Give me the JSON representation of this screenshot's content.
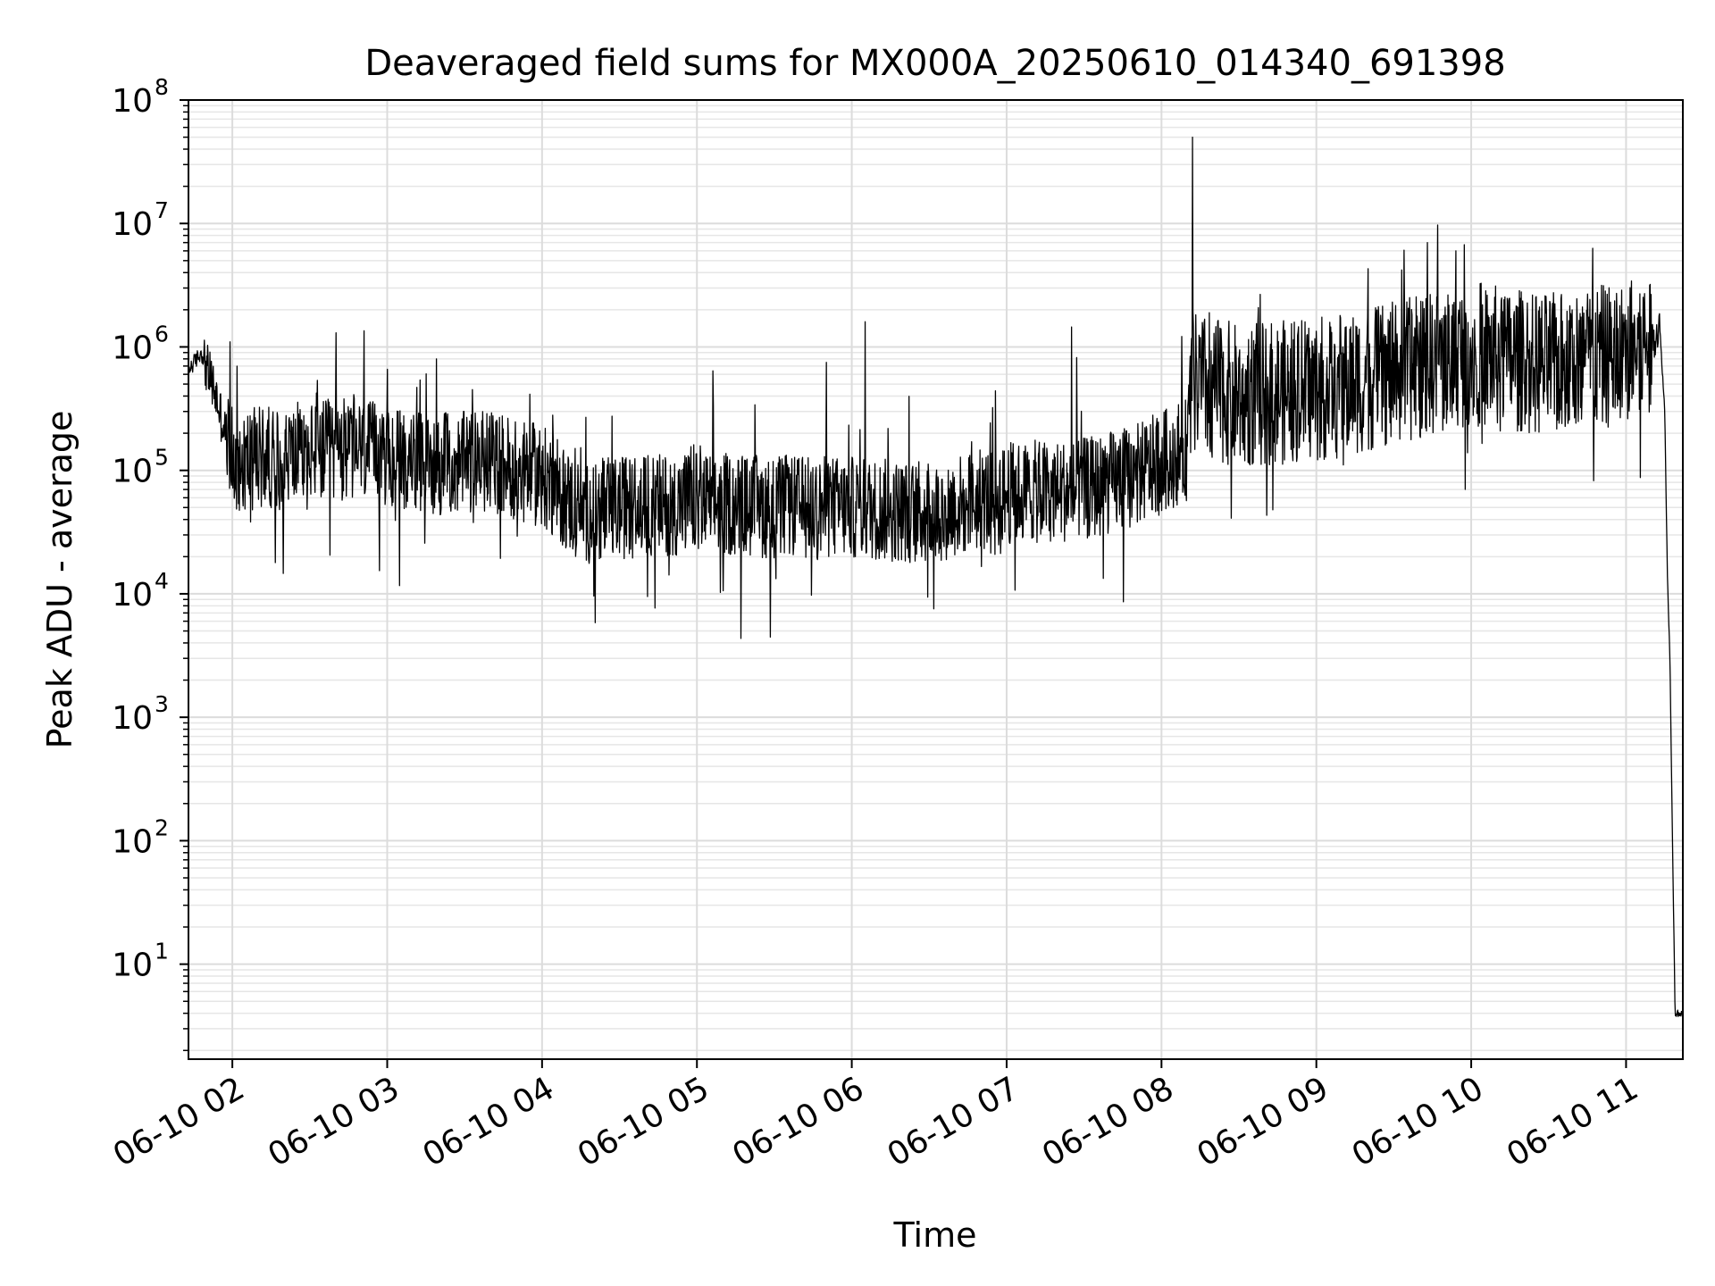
{
  "chart_data": {
    "type": "line",
    "title": "Deaveraged field sums for MX000A_20250610_014340_691398",
    "xlabel": "Time",
    "ylabel": "Peak ADU - average",
    "xlim": [
      "2025-06-10 01:43",
      "2025-06-10 11:22"
    ],
    "ylim": [
      1.7,
      100000000
    ],
    "yscale": "log",
    "grid": true,
    "grid_minor": true,
    "line_color": "#000000",
    "xticks": [
      "06-10 02",
      "06-10 03",
      "06-10 04",
      "06-10 05",
      "06-10 06",
      "06-10 07",
      "06-10 08",
      "06-10 09",
      "06-10 10",
      "06-10 11"
    ],
    "xtick_values": [
      "2025-06-10 02:00",
      "2025-06-10 03:00",
      "2025-06-10 04:00",
      "2025-06-10 05:00",
      "2025-06-10 06:00",
      "2025-06-10 07:00",
      "2025-06-10 08:00",
      "2025-06-10 09:00",
      "2025-06-10 10:00",
      "2025-06-10 11:00"
    ],
    "yticks": [
      10,
      100,
      1000,
      10000,
      100000,
      1000000,
      10000000,
      100000000
    ],
    "ytick_labels": [
      {
        "base": "10",
        "exp": "1"
      },
      {
        "base": "10",
        "exp": "2"
      },
      {
        "base": "10",
        "exp": "3"
      },
      {
        "base": "10",
        "exp": "4"
      },
      {
        "base": "10",
        "exp": "5"
      },
      {
        "base": "10",
        "exp": "6"
      },
      {
        "base": "10",
        "exp": "7"
      },
      {
        "base": "10",
        "exp": "8"
      }
    ],
    "series": [
      {
        "x": [
          "2025-06-10 01:43",
          "2025-06-10 01:48",
          "2025-06-10 01:53",
          "2025-06-10 02:00",
          "2025-06-10 02:15",
          "2025-06-10 02:30",
          "2025-06-10 02:45",
          "2025-06-10 03:00",
          "2025-06-10 03:20",
          "2025-06-10 03:40",
          "2025-06-10 04:00",
          "2025-06-10 04:15",
          "2025-06-10 04:30",
          "2025-06-10 05:00",
          "2025-06-10 05:30",
          "2025-06-10 06:00",
          "2025-06-10 06:30",
          "2025-06-10 07:00",
          "2025-06-10 07:30",
          "2025-06-10 07:50",
          "2025-06-10 08:10",
          "2025-06-10 08:12",
          "2025-06-10 08:30",
          "2025-06-10 09:00",
          "2025-06-10 09:30",
          "2025-06-10 10:00",
          "2025-06-10 10:30",
          "2025-06-10 11:00",
          "2025-06-10 11:10",
          "2025-06-10 11:13",
          "2025-06-10 11:15",
          "2025-06-10 11:16",
          "2025-06-10 11:17",
          "2025-06-10 11:18",
          "2025-06-10 11:19",
          "2025-06-10 11:22"
        ],
        "y": [
          650000,
          900000,
          450000,
          120000,
          130000,
          140000,
          150000,
          130000,
          110000,
          120000,
          90000,
          45000,
          50000,
          55000,
          50000,
          50000,
          45000,
          65000,
          70000,
          90000,
          150000,
          500000,
          400000,
          450000,
          600000,
          900000,
          700000,
          900000,
          1100000,
          1500000,
          300000,
          15000,
          3000,
          100,
          4,
          4
        ]
      }
    ],
    "spikes": [
      {
        "x": "2025-06-10 01:59",
        "y": 1100000
      },
      {
        "x": "2025-06-10 02:40",
        "y": 1300000
      },
      {
        "x": "2025-06-10 02:51",
        "y": 1350000
      },
      {
        "x": "2025-06-10 03:19",
        "y": 800000
      },
      {
        "x": "2025-06-10 04:04",
        "y": 280000
      },
      {
        "x": "2025-06-10 05:50",
        "y": 750000
      },
      {
        "x": "2025-06-10 06:05",
        "y": 1600000
      },
      {
        "x": "2025-06-10 07:25",
        "y": 1450000
      },
      {
        "x": "2025-06-10 08:12",
        "y": 50000000
      },
      {
        "x": "2025-06-10 09:20",
        "y": 4300000
      },
      {
        "x": "2025-06-10 09:33",
        "y": 4200000
      },
      {
        "x": "2025-06-10 09:43",
        "y": 7000000
      },
      {
        "x": "2025-06-10 09:47",
        "y": 9700000
      },
      {
        "x": "2025-06-10 09:54",
        "y": 6000000
      },
      {
        "x": "2025-06-10 10:47",
        "y": 6300000
      }
    ]
  }
}
